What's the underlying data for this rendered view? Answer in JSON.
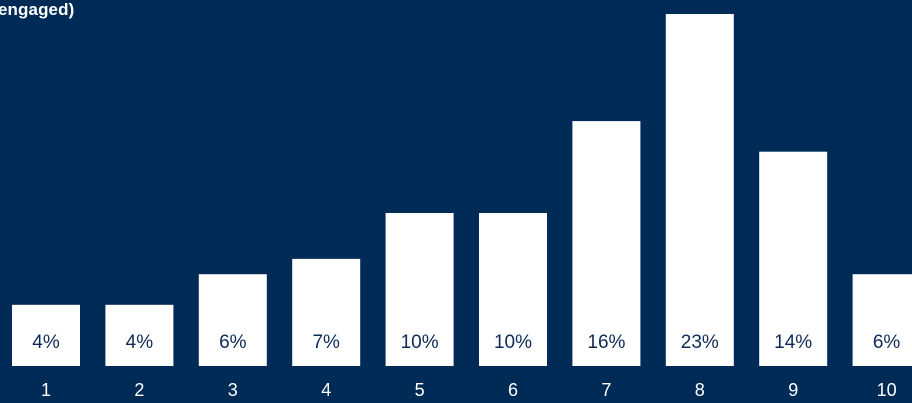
{
  "page": {
    "partial_title": "engaged)",
    "background": "#002b57",
    "bar_color": "#ffffff",
    "label_color": "#0e2b57"
  },
  "chart_data": {
    "type": "bar",
    "title": "engaged)",
    "categories": [
      "1",
      "2",
      "3",
      "4",
      "5",
      "6",
      "7",
      "8",
      "9",
      "10"
    ],
    "values": [
      4,
      4,
      6,
      7,
      10,
      10,
      16,
      23,
      14,
      6
    ],
    "value_labels": [
      "4%",
      "4%",
      "6%",
      "7%",
      "10%",
      "10%",
      "16%",
      "23%",
      "14%",
      "6%"
    ],
    "ylim": [
      0,
      23
    ],
    "unit": "%",
    "grid": false,
    "legend": "none"
  }
}
